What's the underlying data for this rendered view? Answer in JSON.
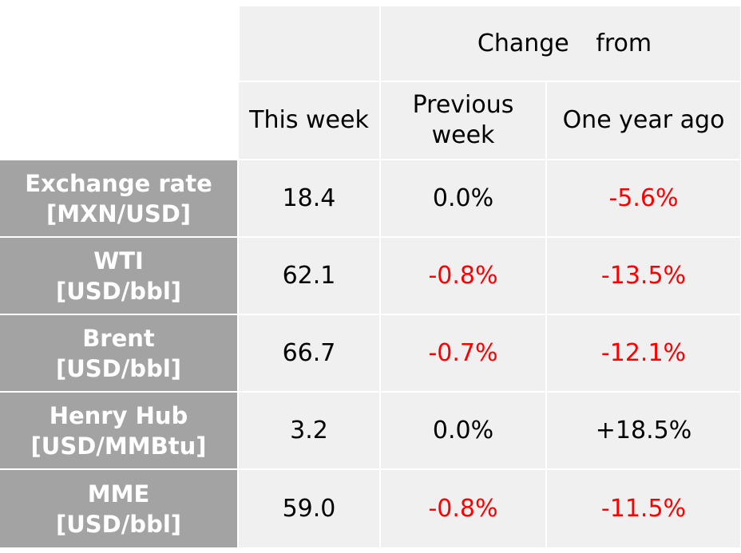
{
  "header": {
    "group_label": "Change from",
    "columns": [
      "This week",
      "Previous week",
      "One year ago"
    ]
  },
  "rows": [
    {
      "label": "Exchange rate",
      "unit": "[MXN/USD]",
      "this_week": "18.4",
      "prev_week": "0.0%",
      "year_ago": "-5.6%"
    },
    {
      "label": "WTI",
      "unit": "[USD/bbl]",
      "this_week": "62.1",
      "prev_week": "-0.8%",
      "year_ago": "-13.5%"
    },
    {
      "label": "Brent",
      "unit": "[USD/bbl]",
      "this_week": "66.7",
      "prev_week": "-0.7%",
      "year_ago": "-12.1%"
    },
    {
      "label": "Henry Hub",
      "unit": "[USD/MMBtu]",
      "this_week": "3.2",
      "prev_week": "0.0%",
      "year_ago": "+18.5%"
    },
    {
      "label": "MME",
      "unit": "[USD/bbl]",
      "this_week": "59.0",
      "prev_week": "-0.8%",
      "year_ago": "-11.5%"
    }
  ],
  "colors": {
    "label_background": "#a3a3a3",
    "cell_background": "#f0f0f0",
    "negative_text": "#ff0000",
    "positive_text": "#000000",
    "label_text": "#ffffff"
  }
}
